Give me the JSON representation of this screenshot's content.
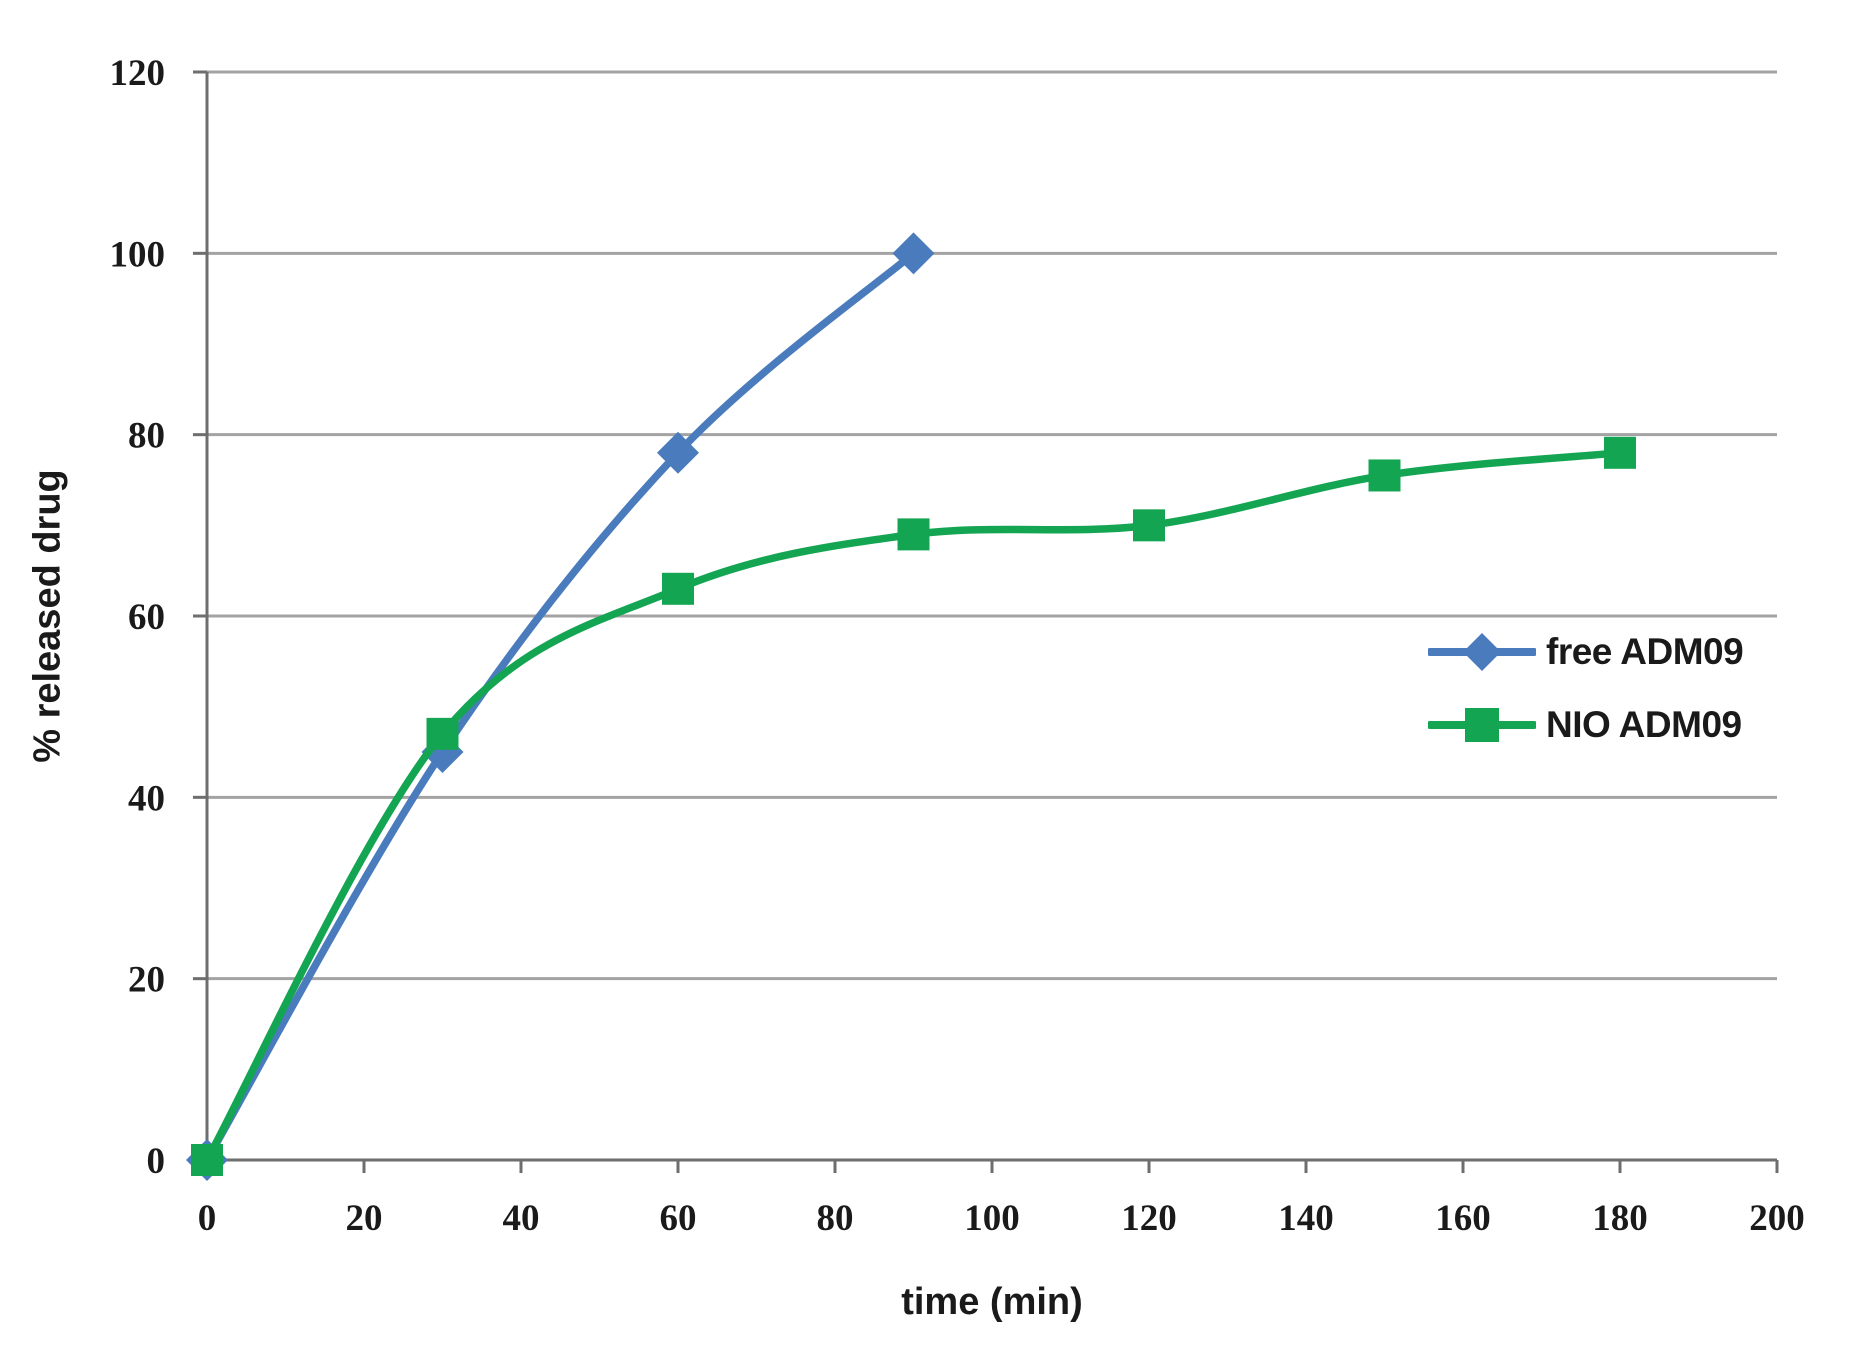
{
  "chart_data": {
    "type": "line",
    "title": "",
    "xlabel": "time (min)",
    "ylabel": "% released drug",
    "xlim": [
      0,
      200
    ],
    "ylim": [
      0,
      120
    ],
    "x_ticks": [
      0,
      20,
      40,
      60,
      80,
      100,
      120,
      140,
      160,
      180,
      200
    ],
    "y_ticks": [
      0,
      20,
      40,
      60,
      80,
      100,
      120
    ],
    "grid": "horizontal-only",
    "smoothed_lines": true,
    "legend_position": "middle-right",
    "series": [
      {
        "name": "free ADM09",
        "color": "#4A7CBD",
        "marker": "diamond",
        "x": [
          0,
          30,
          60,
          90
        ],
        "y": [
          0,
          45,
          78,
          100
        ]
      },
      {
        "name": "NIO ADM09",
        "color": "#14A553",
        "marker": "square",
        "x": [
          0,
          30,
          60,
          90,
          120,
          150,
          180
        ],
        "y": [
          0,
          47,
          63,
          69,
          70,
          75.5,
          78
        ]
      }
    ],
    "colors": {
      "gridline": "#A3A3A3",
      "axis": "#6E6E6E",
      "tick_text": "#1A1A1A",
      "background": "#FFFFFF"
    }
  }
}
